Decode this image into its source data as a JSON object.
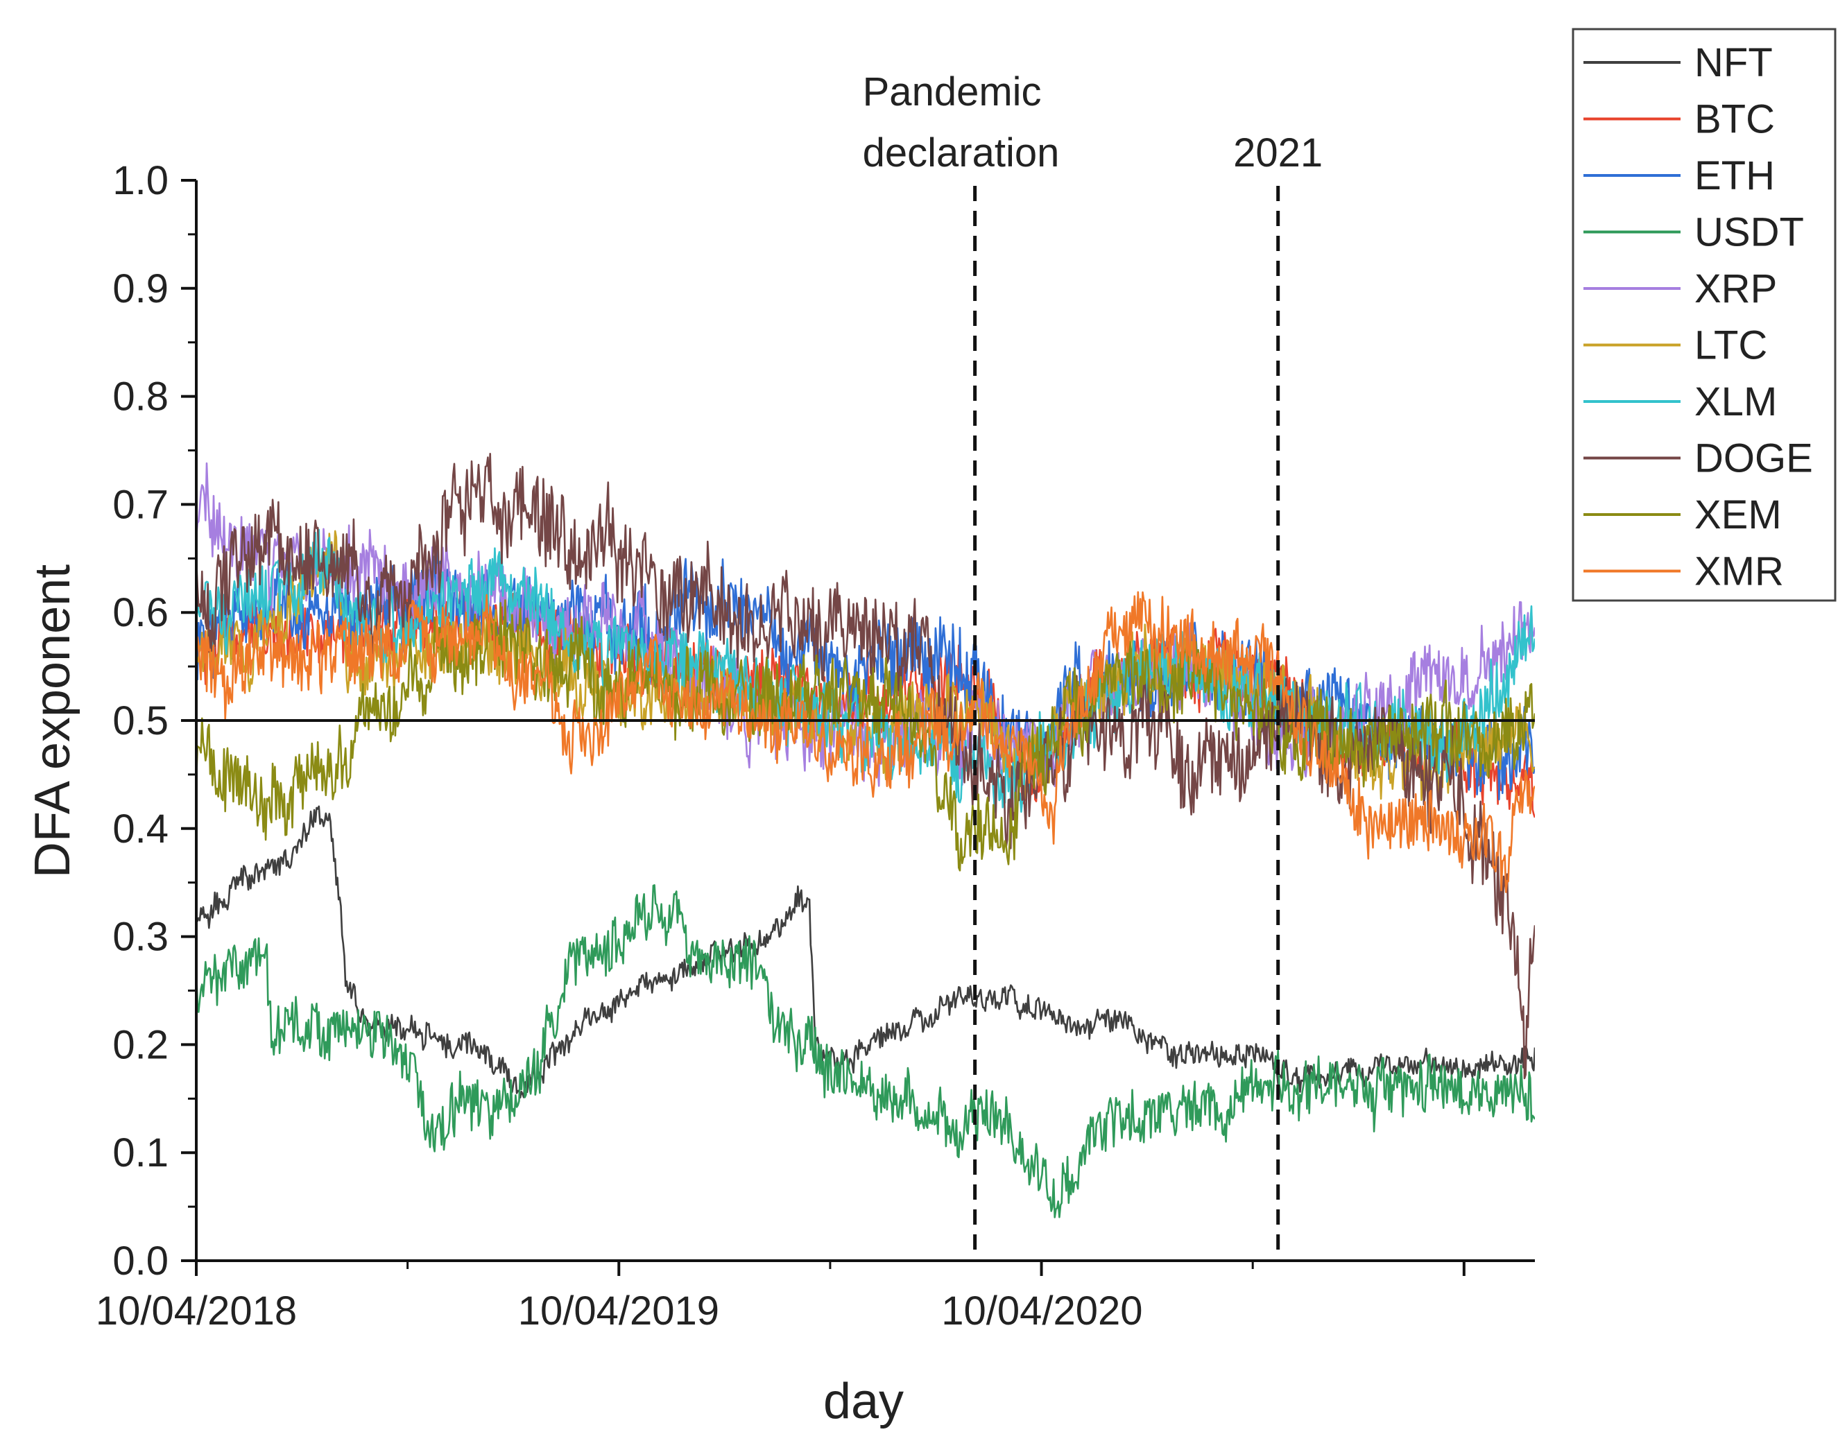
{
  "chart_data": {
    "type": "line",
    "xlabel": "day",
    "ylabel": "DFA exponent",
    "ylim": [
      0.0,
      1.0
    ],
    "yticks": [
      "0.0",
      "0.1",
      "0.2",
      "0.3",
      "0.4",
      "0.5",
      "0.6",
      "0.7",
      "0.8",
      "0.9",
      "1.0"
    ],
    "x_range_days": [
      0,
      1157
    ],
    "xticks": [
      {
        "label": "10/04/2018",
        "day": 0
      },
      {
        "label": "10/04/2019",
        "day": 365
      },
      {
        "label": "10/04/2020",
        "day": 731
      }
    ],
    "reference_line": {
      "y": 0.5
    },
    "annotations": [
      {
        "label_lines": [
          "Pandemic",
          "declaration"
        ],
        "day": 673
      },
      {
        "label_lines": [
          "2021"
        ],
        "day": 935
      }
    ],
    "legend_position": "right-top",
    "series": [
      {
        "name": "NFT",
        "color": "#3f3f3f",
        "noise": 0.008,
        "seed": 11,
        "anchors": [
          [
            0,
            0.31
          ],
          [
            40,
            0.35
          ],
          [
            80,
            0.37
          ],
          [
            105,
            0.42
          ],
          [
            115,
            0.41
          ],
          [
            125,
            0.32
          ],
          [
            130,
            0.25
          ],
          [
            150,
            0.22
          ],
          [
            200,
            0.21
          ],
          [
            250,
            0.19
          ],
          [
            260,
            0.18
          ],
          [
            280,
            0.16
          ],
          [
            300,
            0.18
          ],
          [
            340,
            0.22
          ],
          [
            380,
            0.25
          ],
          [
            420,
            0.27
          ],
          [
            460,
            0.29
          ],
          [
            500,
            0.3
          ],
          [
            480,
            0.29
          ],
          [
            520,
            0.33
          ],
          [
            530,
            0.32
          ],
          [
            535,
            0.2
          ],
          [
            560,
            0.19
          ],
          [
            600,
            0.21
          ],
          [
            640,
            0.23
          ],
          [
            673,
            0.245
          ],
          [
            700,
            0.24
          ],
          [
            760,
            0.22
          ],
          [
            800,
            0.22
          ],
          [
            840,
            0.19
          ],
          [
            880,
            0.19
          ],
          [
            920,
            0.19
          ],
          [
            935,
            0.17
          ],
          [
            1000,
            0.17
          ],
          [
            1050,
            0.18
          ],
          [
            1100,
            0.18
          ],
          [
            1157,
            0.19
          ]
        ]
      },
      {
        "name": "BTC",
        "color": "#e8432c",
        "noise": 0.02,
        "seed": 12,
        "anchors": [
          [
            0,
            0.57
          ],
          [
            80,
            0.58
          ],
          [
            160,
            0.59
          ],
          [
            240,
            0.6
          ],
          [
            320,
            0.58
          ],
          [
            400,
            0.56
          ],
          [
            480,
            0.55
          ],
          [
            560,
            0.52
          ],
          [
            640,
            0.53
          ],
          [
            673,
            0.54
          ],
          [
            720,
            0.43
          ],
          [
            760,
            0.52
          ],
          [
            820,
            0.56
          ],
          [
            880,
            0.55
          ],
          [
            935,
            0.55
          ],
          [
            960,
            0.49
          ],
          [
            1000,
            0.48
          ],
          [
            1060,
            0.46
          ],
          [
            1120,
            0.45
          ],
          [
            1157,
            0.45
          ]
        ]
      },
      {
        "name": "ETH",
        "color": "#2f6fd6",
        "noise": 0.024,
        "seed": 13,
        "anchors": [
          [
            0,
            0.58
          ],
          [
            80,
            0.6
          ],
          [
            160,
            0.61
          ],
          [
            240,
            0.61
          ],
          [
            320,
            0.6
          ],
          [
            400,
            0.58
          ],
          [
            450,
            0.62
          ],
          [
            480,
            0.6
          ],
          [
            560,
            0.54
          ],
          [
            620,
            0.56
          ],
          [
            673,
            0.53
          ],
          [
            720,
            0.47
          ],
          [
            760,
            0.53
          ],
          [
            820,
            0.56
          ],
          [
            880,
            0.54
          ],
          [
            935,
            0.53
          ],
          [
            980,
            0.5
          ],
          [
            1040,
            0.48
          ],
          [
            1100,
            0.47
          ],
          [
            1157,
            0.48
          ]
        ]
      },
      {
        "name": "USDT",
        "color": "#2f9a5a",
        "noise": 0.018,
        "seed": 14,
        "anchors": [
          [
            0,
            0.26
          ],
          [
            40,
            0.28
          ],
          [
            60,
            0.3
          ],
          [
            65,
            0.22
          ],
          [
            110,
            0.21
          ],
          [
            120,
            0.22
          ],
          [
            160,
            0.2
          ],
          [
            190,
            0.17
          ],
          [
            200,
            0.12
          ],
          [
            230,
            0.15
          ],
          [
            260,
            0.13
          ],
          [
            290,
            0.17
          ],
          [
            310,
            0.22
          ],
          [
            320,
            0.28
          ],
          [
            380,
            0.3
          ],
          [
            400,
            0.32
          ],
          [
            440,
            0.28
          ],
          [
            480,
            0.27
          ],
          [
            500,
            0.22
          ],
          [
            540,
            0.19
          ],
          [
            580,
            0.16
          ],
          [
            620,
            0.14
          ],
          [
            650,
            0.12
          ],
          [
            673,
            0.15
          ],
          [
            700,
            0.14
          ],
          [
            740,
            0.06
          ],
          [
            760,
            0.07
          ],
          [
            780,
            0.12
          ],
          [
            800,
            0.13
          ],
          [
            880,
            0.14
          ],
          [
            935,
            0.16
          ],
          [
            1000,
            0.16
          ],
          [
            1060,
            0.16
          ],
          [
            1157,
            0.16
          ]
        ]
      },
      {
        "name": "XRP",
        "color": "#a67fe0",
        "noise": 0.025,
        "seed": 15,
        "anchors": [
          [
            0,
            0.7
          ],
          [
            60,
            0.64
          ],
          [
            120,
            0.65
          ],
          [
            180,
            0.63
          ],
          [
            240,
            0.62
          ],
          [
            300,
            0.6
          ],
          [
            380,
            0.59
          ],
          [
            440,
            0.55
          ],
          [
            480,
            0.5
          ],
          [
            540,
            0.49
          ],
          [
            600,
            0.47
          ],
          [
            673,
            0.5
          ],
          [
            720,
            0.46
          ],
          [
            760,
            0.5
          ],
          [
            820,
            0.55
          ],
          [
            880,
            0.53
          ],
          [
            935,
            0.5
          ],
          [
            980,
            0.49
          ],
          [
            1040,
            0.5
          ],
          [
            1090,
            0.55
          ],
          [
            1130,
            0.57
          ],
          [
            1157,
            0.6
          ]
        ]
      },
      {
        "name": "LTC",
        "color": "#c9a227",
        "noise": 0.022,
        "seed": 16,
        "anchors": [
          [
            0,
            0.56
          ],
          [
            60,
            0.58
          ],
          [
            120,
            0.65
          ],
          [
            130,
            0.55
          ],
          [
            200,
            0.57
          ],
          [
            280,
            0.56
          ],
          [
            340,
            0.54
          ],
          [
            400,
            0.52
          ],
          [
            480,
            0.52
          ],
          [
            560,
            0.5
          ],
          [
            640,
            0.5
          ],
          [
            673,
            0.5
          ],
          [
            720,
            0.46
          ],
          [
            760,
            0.51
          ],
          [
            820,
            0.56
          ],
          [
            880,
            0.54
          ],
          [
            935,
            0.52
          ],
          [
            980,
            0.48
          ],
          [
            1040,
            0.46
          ],
          [
            1100,
            0.47
          ],
          [
            1157,
            0.49
          ]
        ]
      },
      {
        "name": "XLM",
        "color": "#33c2cc",
        "noise": 0.024,
        "seed": 17,
        "anchors": [
          [
            0,
            0.6
          ],
          [
            60,
            0.62
          ],
          [
            120,
            0.63
          ],
          [
            160,
            0.58
          ],
          [
            220,
            0.61
          ],
          [
            260,
            0.64
          ],
          [
            320,
            0.58
          ],
          [
            380,
            0.56
          ],
          [
            440,
            0.55
          ],
          [
            500,
            0.52
          ],
          [
            560,
            0.49
          ],
          [
            620,
            0.48
          ],
          [
            673,
            0.47
          ],
          [
            720,
            0.45
          ],
          [
            760,
            0.5
          ],
          [
            820,
            0.55
          ],
          [
            880,
            0.53
          ],
          [
            935,
            0.52
          ],
          [
            980,
            0.49
          ],
          [
            1040,
            0.48
          ],
          [
            1100,
            0.5
          ],
          [
            1157,
            0.58
          ]
        ]
      },
      {
        "name": "DOGE",
        "color": "#744646",
        "noise": 0.03,
        "seed": 18,
        "anchors": [
          [
            0,
            0.62
          ],
          [
            60,
            0.66
          ],
          [
            120,
            0.64
          ],
          [
            160,
            0.6
          ],
          [
            200,
            0.65
          ],
          [
            240,
            0.7
          ],
          [
            280,
            0.69
          ],
          [
            320,
            0.66
          ],
          [
            380,
            0.65
          ],
          [
            430,
            0.62
          ],
          [
            470,
            0.6
          ],
          [
            520,
            0.6
          ],
          [
            560,
            0.59
          ],
          [
            600,
            0.58
          ],
          [
            630,
            0.59
          ],
          [
            640,
            0.53
          ],
          [
            673,
            0.46
          ],
          [
            720,
            0.44
          ],
          [
            760,
            0.49
          ],
          [
            820,
            0.52
          ],
          [
            860,
            0.44
          ],
          [
            900,
            0.46
          ],
          [
            935,
            0.5
          ],
          [
            980,
            0.48
          ],
          [
            1040,
            0.46
          ],
          [
            1100,
            0.42
          ],
          [
            1140,
            0.3
          ],
          [
            1148,
            0.22
          ],
          [
            1157,
            0.34
          ]
        ]
      },
      {
        "name": "XEM",
        "color": "#8b8b14",
        "noise": 0.025,
        "seed": 19,
        "anchors": [
          [
            0,
            0.46
          ],
          [
            40,
            0.44
          ],
          [
            60,
            0.43
          ],
          [
            100,
            0.45
          ],
          [
            120,
            0.46
          ],
          [
            160,
            0.52
          ],
          [
            200,
            0.55
          ],
          [
            240,
            0.57
          ],
          [
            300,
            0.56
          ],
          [
            360,
            0.53
          ],
          [
            420,
            0.52
          ],
          [
            480,
            0.53
          ],
          [
            540,
            0.54
          ],
          [
            600,
            0.52
          ],
          [
            640,
            0.45
          ],
          [
            660,
            0.38
          ],
          [
            673,
            0.4
          ],
          [
            700,
            0.4
          ],
          [
            720,
            0.45
          ],
          [
            760,
            0.5
          ],
          [
            820,
            0.55
          ],
          [
            880,
            0.52
          ],
          [
            935,
            0.49
          ],
          [
            980,
            0.49
          ],
          [
            1040,
            0.48
          ],
          [
            1100,
            0.49
          ],
          [
            1157,
            0.5
          ]
        ]
      },
      {
        "name": "XMR",
        "color": "#f07828",
        "noise": 0.022,
        "seed": 20,
        "anchors": [
          [
            0,
            0.55
          ],
          [
            80,
            0.57
          ],
          [
            160,
            0.56
          ],
          [
            240,
            0.58
          ],
          [
            300,
            0.55
          ],
          [
            320,
            0.48
          ],
          [
            380,
            0.54
          ],
          [
            440,
            0.52
          ],
          [
            500,
            0.51
          ],
          [
            540,
            0.48
          ],
          [
            600,
            0.47
          ],
          [
            673,
            0.5
          ],
          [
            720,
            0.47
          ],
          [
            740,
            0.42
          ],
          [
            760,
            0.52
          ],
          [
            800,
            0.6
          ],
          [
            840,
            0.58
          ],
          [
            880,
            0.55
          ],
          [
            935,
            0.55
          ],
          [
            960,
            0.47
          ],
          [
            1000,
            0.42
          ],
          [
            1040,
            0.4
          ],
          [
            1100,
            0.4
          ],
          [
            1130,
            0.38
          ],
          [
            1157,
            0.45
          ]
        ]
      }
    ]
  }
}
